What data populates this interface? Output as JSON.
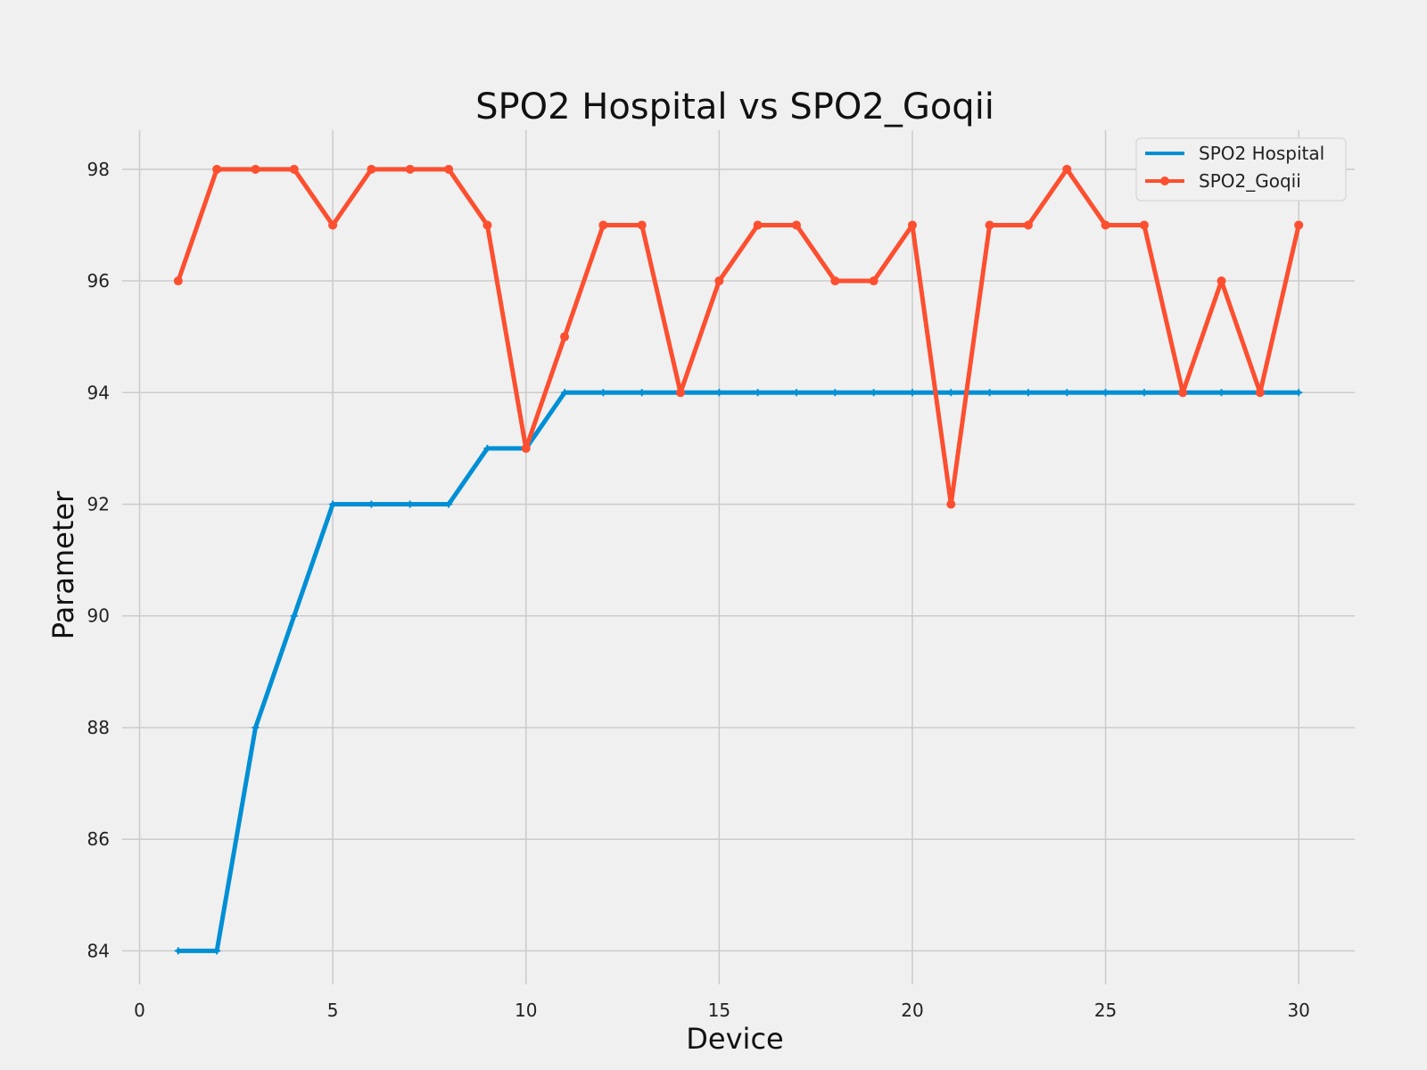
{
  "chart_data": {
    "type": "line",
    "title": "SPO2 Hospital vs SPO2_Goqii",
    "xlabel": "Device",
    "ylabel": "Parameter",
    "xlim": [
      -0.45,
      31.45
    ],
    "ylim": [
      83.4,
      98.7
    ],
    "xticks": [
      0,
      5,
      10,
      15,
      20,
      25,
      30
    ],
    "yticks": [
      84,
      86,
      88,
      90,
      92,
      94,
      96,
      98
    ],
    "grid": true,
    "legend_position": "top-right",
    "x": [
      1,
      2,
      3,
      4,
      5,
      6,
      7,
      8,
      9,
      10,
      11,
      12,
      13,
      14,
      15,
      16,
      17,
      18,
      19,
      20,
      21,
      22,
      23,
      24,
      25,
      26,
      27,
      28,
      29,
      30
    ],
    "series": [
      {
        "name": "SPO2 Hospital",
        "color": "#008fd5",
        "marker": "plus",
        "values": [
          84,
          84,
          88,
          90,
          92,
          92,
          92,
          92,
          93,
          93,
          94,
          94,
          94,
          94,
          94,
          94,
          94,
          94,
          94,
          94,
          94,
          94,
          94,
          94,
          94,
          94,
          94,
          94,
          94,
          94
        ]
      },
      {
        "name": "SPO2_Goqii",
        "color": "#fc4f30",
        "marker": "circle",
        "values": [
          96,
          98,
          98,
          98,
          97,
          98,
          98,
          98,
          97,
          93,
          95,
          97,
          97,
          94,
          96,
          97,
          97,
          96,
          96,
          97,
          92,
          97,
          97,
          98,
          97,
          97,
          94,
          96,
          94,
          97
        ]
      }
    ]
  }
}
